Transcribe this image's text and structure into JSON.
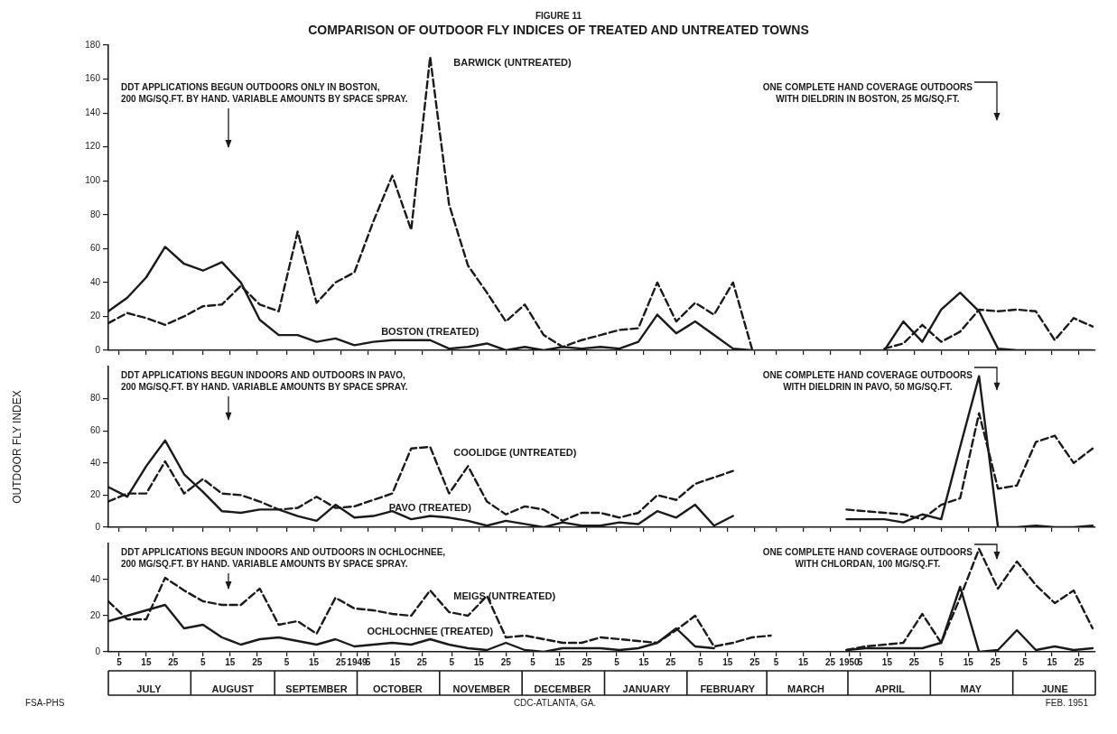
{
  "chart_data": [
    {
      "type": "line",
      "subtitle": "FIGURE 11",
      "title": "COMPARISON OF OUTDOOR FLY INDICES OF TREATED AND UNTREATED TOWNS",
      "annotations": [
        "DDT APPLICATIONS BEGUN OUTDOORS ONLY IN BOSTON,\n200 MG/SQ.FT. BY HAND. VARIABLE AMOUNTS BY SPACE SPRAY.",
        "ONE COMPLETE HAND COVERAGE OUTDOORS\nWITH DIELDRIN IN BOSTON, 25 MG/SQ.FT."
      ],
      "x": [
        "1949-07-01",
        "1949-07-08",
        "1949-07-15",
        "1949-07-22",
        "1949-07-29",
        "1949-08-05",
        "1949-08-12",
        "1949-08-19",
        "1949-08-26",
        "1949-09-02",
        "1949-09-09",
        "1949-09-16",
        "1949-09-23",
        "1949-09-30",
        "1949-10-07",
        "1949-10-14",
        "1949-10-21",
        "1949-10-28",
        "1949-11-04",
        "1949-11-11",
        "1949-11-18",
        "1949-11-25",
        "1949-12-02",
        "1949-12-09",
        "1949-12-16",
        "1949-12-23",
        "1949-12-30",
        "1950-01-06",
        "1950-01-13",
        "1950-01-20",
        "1950-01-27",
        "1950-02-03",
        "1950-02-10",
        "1950-02-17",
        "1950-02-24",
        "1950-03-03",
        "1950-03-10",
        "1950-03-17",
        "1950-03-24",
        "1950-03-31",
        "1950-04-07",
        "1950-04-14",
        "1950-04-21",
        "1950-04-28",
        "1950-05-05",
        "1950-05-12",
        "1950-05-19",
        "1950-05-26",
        "1950-06-02",
        "1950-06-09",
        "1950-06-16",
        "1950-06-23",
        "1950-06-30"
      ],
      "series": [
        {
          "name": "BOSTON (TREATED)",
          "color": "#1a1a1a",
          "line_style": "solid",
          "values": [
            23,
            31,
            43,
            61,
            51,
            47,
            52,
            40,
            18,
            9,
            9,
            5,
            7,
            3,
            5,
            6,
            6,
            6,
            1,
            2,
            4,
            0,
            2,
            0,
            2,
            1,
            2,
            1,
            5,
            21,
            10,
            17,
            9,
            1,
            0,
            null,
            null,
            null,
            null,
            null,
            null,
            0,
            17,
            5,
            24,
            34,
            23,
            1,
            0,
            0,
            0,
            0,
            0
          ]
        },
        {
          "name": "BARWICK (UNTREATED)",
          "color": "#1a1a1a",
          "line_style": "dashed",
          "values": [
            16,
            22,
            19,
            15,
            20,
            26,
            27,
            38,
            27,
            23,
            70,
            28,
            40,
            46,
            76,
            103,
            71,
            173,
            86,
            50,
            34,
            17,
            27,
            9,
            2,
            6,
            9,
            12,
            13,
            40,
            17,
            28,
            21,
            40,
            1,
            null,
            null,
            null,
            null,
            null,
            null,
            1,
            4,
            15,
            5,
            11,
            24,
            23,
            24,
            23,
            6,
            19,
            14
          ]
        }
      ],
      "xlim": [
        "1949-07-01",
        "1950-07-01"
      ],
      "xticks": [
        {
          "value": "1949-07-05",
          "label": null
        },
        {
          "value": "1949-07-15",
          "label": null
        },
        {
          "value": "1949-07-25",
          "label": null
        },
        {
          "value": "1949-08-05",
          "label": null
        },
        {
          "value": "1949-08-15",
          "label": null
        },
        {
          "value": "1949-08-25",
          "label": null
        },
        {
          "value": "1949-09-05",
          "label": null
        },
        {
          "value": "1949-09-15",
          "label": null
        },
        {
          "value": "1949-09-25",
          "label": null
        },
        {
          "value": "1949-10-05",
          "label": null
        },
        {
          "value": "1949-10-15",
          "label": null
        },
        {
          "value": "1949-10-25",
          "label": null
        },
        {
          "value": "1949-11-05",
          "label": null
        },
        {
          "value": "1949-11-15",
          "label": null
        },
        {
          "value": "1949-11-25",
          "label": null
        },
        {
          "value": "1949-12-05",
          "label": null
        },
        {
          "value": "1949-12-15",
          "label": null
        },
        {
          "value": "1949-12-25",
          "label": null
        },
        {
          "value": "1950-01-05",
          "label": null
        },
        {
          "value": "1950-01-15",
          "label": null
        },
        {
          "value": "1950-01-25",
          "label": null
        },
        {
          "value": "1950-02-05",
          "label": null
        },
        {
          "value": "1950-02-15",
          "label": null
        },
        {
          "value": "1950-02-25",
          "label": null
        },
        {
          "value": "1950-03-05",
          "label": null
        },
        {
          "value": "1950-03-15",
          "label": null
        },
        {
          "value": "1950-03-25",
          "label": null
        },
        {
          "value": "1950-04-05",
          "label": null
        },
        {
          "value": "1950-04-15",
          "label": null
        },
        {
          "value": "1950-04-25",
          "label": null
        },
        {
          "value": "1950-05-05",
          "label": null
        },
        {
          "value": "1950-05-15",
          "label": null
        },
        {
          "value": "1950-05-25",
          "label": null
        },
        {
          "value": "1950-06-05",
          "label": null
        },
        {
          "value": "1950-06-15",
          "label": null
        },
        {
          "value": "1950-06-25",
          "label": null
        }
      ],
      "ylim": [
        0,
        180
      ],
      "yticks": [
        0,
        20,
        40,
        60,
        80,
        100,
        120,
        140,
        160,
        180
      ],
      "tick_labels": "y",
      "marker": "none",
      "legend": false
    },
    {
      "type": "line",
      "ylabel": "OUTDOOR FLY INDEX",
      "annotations": [
        "DDT APPLICATIONS BEGUN INDOORS AND OUTDOORS IN PAVO,\n200 MG/SQ.FT. BY HAND. VARIABLE AMOUNTS BY SPACE SPRAY.",
        "ONE COMPLETE HAND COVERAGE OUTDOORS\nWITH DIELDRIN IN PAVO, 50 MG/SQ.FT."
      ],
      "x": [
        "1949-07-01",
        "1949-07-08",
        "1949-07-15",
        "1949-07-22",
        "1949-07-29",
        "1949-08-05",
        "1949-08-12",
        "1949-08-19",
        "1949-08-26",
        "1949-09-02",
        "1949-09-09",
        "1949-09-16",
        "1949-09-23",
        "1949-09-30",
        "1949-10-07",
        "1949-10-14",
        "1949-10-21",
        "1949-10-28",
        "1949-11-04",
        "1949-11-11",
        "1949-11-18",
        "1949-11-25",
        "1949-12-02",
        "1949-12-09",
        "1949-12-16",
        "1949-12-23",
        "1949-12-30",
        "1950-01-06",
        "1950-01-13",
        "1950-01-20",
        "1950-01-27",
        "1950-02-03",
        "1950-02-10",
        "1950-02-17",
        "1950-02-24",
        "1950-03-03",
        "1950-03-10",
        "1950-03-17",
        "1950-03-24",
        "1950-03-31",
        "1950-04-07",
        "1950-04-14",
        "1950-04-21",
        "1950-04-28",
        "1950-05-05",
        "1950-05-12",
        "1950-05-19",
        "1950-05-26",
        "1950-06-02",
        "1950-06-09",
        "1950-06-16",
        "1950-06-23",
        "1950-06-30"
      ],
      "series": [
        {
          "name": "PAVO (TREATED)",
          "color": "#1a1a1a",
          "line_style": "solid",
          "values": [
            25,
            19,
            38,
            54,
            33,
            22,
            10,
            9,
            11,
            11,
            7,
            4,
            14,
            6,
            7,
            10,
            5,
            7,
            6,
            4,
            1,
            4,
            2,
            0,
            3,
            1,
            1,
            3,
            2,
            10,
            6,
            14,
            1,
            7,
            null,
            null,
            null,
            null,
            null,
            5,
            5,
            5,
            3,
            8,
            5,
            50,
            94,
            0,
            0,
            1,
            0,
            0,
            1
          ]
        },
        {
          "name": "COOLIDGE (UNTREATED)",
          "color": "#1a1a1a",
          "line_style": "dashed",
          "values": [
            16,
            21,
            21,
            41,
            21,
            30,
            21,
            20,
            16,
            11,
            12,
            19,
            12,
            13,
            17,
            21,
            49,
            50,
            21,
            38,
            16,
            8,
            13,
            11,
            4,
            9,
            9,
            6,
            9,
            20,
            17,
            27,
            31,
            35,
            null,
            null,
            null,
            null,
            null,
            11,
            10,
            9,
            8,
            5,
            14,
            18,
            71,
            24,
            26,
            53,
            57,
            40,
            49
          ]
        }
      ],
      "xlim": [
        "1949-07-01",
        "1950-07-01"
      ],
      "xticks": [
        {
          "value": "1949-07-05",
          "label": null
        },
        {
          "value": "1949-07-15",
          "label": null
        },
        {
          "value": "1949-07-25",
          "label": null
        },
        {
          "value": "1949-08-05",
          "label": null
        },
        {
          "value": "1949-08-15",
          "label": null
        },
        {
          "value": "1949-08-25",
          "label": null
        },
        {
          "value": "1949-09-05",
          "label": null
        },
        {
          "value": "1949-09-15",
          "label": null
        },
        {
          "value": "1949-09-25",
          "label": null
        },
        {
          "value": "1949-10-05",
          "label": null
        },
        {
          "value": "1949-10-15",
          "label": null
        },
        {
          "value": "1949-10-25",
          "label": null
        },
        {
          "value": "1949-11-05",
          "label": null
        },
        {
          "value": "1949-11-15",
          "label": null
        },
        {
          "value": "1949-11-25",
          "label": null
        },
        {
          "value": "1949-12-05",
          "label": null
        },
        {
          "value": "1949-12-15",
          "label": null
        },
        {
          "value": "1949-12-25",
          "label": null
        },
        {
          "value": "1950-01-05",
          "label": null
        },
        {
          "value": "1950-01-15",
          "label": null
        },
        {
          "value": "1950-01-25",
          "label": null
        },
        {
          "value": "1950-02-05",
          "label": null
        },
        {
          "value": "1950-02-15",
          "label": null
        },
        {
          "value": "1950-02-25",
          "label": null
        },
        {
          "value": "1950-03-05",
          "label": null
        },
        {
          "value": "1950-03-15",
          "label": null
        },
        {
          "value": "1950-03-25",
          "label": null
        },
        {
          "value": "1950-04-05",
          "label": null
        },
        {
          "value": "1950-04-15",
          "label": null
        },
        {
          "value": "1950-04-25",
          "label": null
        },
        {
          "value": "1950-05-05",
          "label": null
        },
        {
          "value": "1950-05-15",
          "label": null
        },
        {
          "value": "1950-05-25",
          "label": null
        },
        {
          "value": "1950-06-05",
          "label": null
        },
        {
          "value": "1950-06-15",
          "label": null
        },
        {
          "value": "1950-06-25",
          "label": null
        }
      ],
      "ylim": [
        0,
        100
      ],
      "yticks": [
        0,
        20,
        40,
        60,
        80
      ],
      "tick_labels": "y",
      "marker": "none",
      "legend": false
    },
    {
      "type": "line",
      "annotations": [
        "DDT APPLICATIONS BEGUN INDOORS AND OUTDOORS IN OCHLOCHNEE,\n200 MG/SQ.FT. BY HAND. VARIABLE AMOUNTS BY SPACE SPRAY.",
        "ONE COMPLETE HAND COVERAGE OUTDOORS\nWITH CHLORDAN, 100 MG/SQ.FT.",
        "FSA-PHS",
        "CDC-ATLANTA, GA.",
        "FEB. 1951"
      ],
      "x": [
        "1949-07-01",
        "1949-07-08",
        "1949-07-15",
        "1949-07-22",
        "1949-07-29",
        "1949-08-05",
        "1949-08-12",
        "1949-08-19",
        "1949-08-26",
        "1949-09-02",
        "1949-09-09",
        "1949-09-16",
        "1949-09-23",
        "1949-09-30",
        "1949-10-07",
        "1949-10-14",
        "1949-10-21",
        "1949-10-28",
        "1949-11-04",
        "1949-11-11",
        "1949-11-18",
        "1949-11-25",
        "1949-12-02",
        "1949-12-09",
        "1949-12-16",
        "1949-12-23",
        "1949-12-30",
        "1950-01-06",
        "1950-01-13",
        "1950-01-20",
        "1950-01-27",
        "1950-02-03",
        "1950-02-10",
        "1950-02-17",
        "1950-02-24",
        "1950-03-03",
        "1950-03-10",
        "1950-03-17",
        "1950-03-24",
        "1950-03-31",
        "1950-04-07",
        "1950-04-14",
        "1950-04-21",
        "1950-04-28",
        "1950-05-05",
        "1950-05-12",
        "1950-05-19",
        "1950-05-26",
        "1950-06-02",
        "1950-06-09",
        "1950-06-16",
        "1950-06-23",
        "1950-06-30"
      ],
      "series": [
        {
          "name": "OCHLOCHNEE (TREATED)",
          "color": "#1a1a1a",
          "line_style": "solid",
          "values": [
            17,
            20,
            23,
            26,
            13,
            15,
            8,
            4,
            7,
            8,
            6,
            4,
            7,
            3,
            4,
            5,
            4,
            7,
            4,
            2,
            1,
            5,
            1,
            0,
            2,
            2,
            2,
            1,
            2,
            5,
            13,
            3,
            2,
            null,
            null,
            null,
            null,
            null,
            null,
            1,
            2,
            2,
            2,
            2,
            5,
            36,
            0,
            1,
            12,
            1,
            3,
            1,
            2
          ]
        },
        {
          "name": "MEIGS (UNTREATED)",
          "color": "#1a1a1a",
          "line_style": "dashed",
          "values": [
            28,
            18,
            18,
            41,
            34,
            28,
            26,
            26,
            35,
            15,
            17,
            10,
            30,
            24,
            23,
            21,
            20,
            34,
            22,
            20,
            31,
            8,
            9,
            7,
            5,
            5,
            8,
            7,
            6,
            5,
            12,
            20,
            3,
            5,
            8,
            9,
            null,
            null,
            null,
            1,
            3,
            4,
            5,
            21,
            5,
            30,
            57,
            35,
            50,
            37,
            27,
            34,
            13
          ]
        }
      ],
      "xlim": [
        "1949-07-01",
        "1950-07-01"
      ],
      "xticks": [
        {
          "value": "1949-07-05",
          "label": "5"
        },
        {
          "value": "1949-07-15",
          "label": "15"
        },
        {
          "value": "1949-07-25",
          "label": "25"
        },
        {
          "value": "1949-08-05",
          "label": "5"
        },
        {
          "value": "1949-08-15",
          "label": "15"
        },
        {
          "value": "1949-08-25",
          "label": "25"
        },
        {
          "value": "1949-09-05",
          "label": "5"
        },
        {
          "value": "1949-09-15",
          "label": "15"
        },
        {
          "value": "1949-09-25",
          "label": "25"
        },
        {
          "value": "1949-10-01",
          "label": "1949"
        },
        {
          "value": "1949-10-05",
          "label": "5"
        },
        {
          "value": "1949-10-15",
          "label": "15"
        },
        {
          "value": "1949-10-25",
          "label": "25"
        },
        {
          "value": "1949-11-05",
          "label": "5"
        },
        {
          "value": "1949-11-15",
          "label": "15"
        },
        {
          "value": "1949-11-25",
          "label": "25"
        },
        {
          "value": "1949-12-05",
          "label": "5"
        },
        {
          "value": "1949-12-15",
          "label": "15"
        },
        {
          "value": "1949-12-25",
          "label": "25"
        },
        {
          "value": "1950-01-05",
          "label": "5"
        },
        {
          "value": "1950-01-15",
          "label": "15"
        },
        {
          "value": "1950-01-25",
          "label": "25"
        },
        {
          "value": "1950-02-05",
          "label": "5"
        },
        {
          "value": "1950-02-15",
          "label": "15"
        },
        {
          "value": "1950-02-25",
          "label": "25"
        },
        {
          "value": "1950-03-05",
          "label": "5"
        },
        {
          "value": "1950-03-15",
          "label": "15"
        },
        {
          "value": "1950-03-25",
          "label": "25"
        },
        {
          "value": "1950-04-01",
          "label": "1950"
        },
        {
          "value": "1950-04-05",
          "label": "5"
        },
        {
          "value": "1950-04-15",
          "label": "15"
        },
        {
          "value": "1950-04-25",
          "label": "25"
        },
        {
          "value": "1950-05-05",
          "label": "5"
        },
        {
          "value": "1950-05-15",
          "label": "15"
        },
        {
          "value": "1950-05-25",
          "label": "25"
        },
        {
          "value": "1950-06-05",
          "label": "5"
        },
        {
          "value": "1950-06-15",
          "label": "15"
        },
        {
          "value": "1950-06-25",
          "label": "25"
        }
      ],
      "x2lim": [
        "1949-07-01",
        "1950-07-01"
      ],
      "x2ticks": [
        {
          "value": "1949-07-16",
          "label": "JULY"
        },
        {
          "value": "1949-08-16",
          "label": "AUGUST"
        },
        {
          "value": "1949-09-16",
          "label": "SEPTEMBER"
        },
        {
          "value": "1949-10-16",
          "label": "OCTOBER"
        },
        {
          "value": "1949-11-16",
          "label": "NOVEMBER"
        },
        {
          "value": "1949-12-16",
          "label": "DECEMBER"
        },
        {
          "value": "1950-01-16",
          "label": "JANUARY"
        },
        {
          "value": "1950-02-15",
          "label": "FEBRUARY"
        },
        {
          "value": "1950-03-16",
          "label": "MARCH"
        },
        {
          "value": "1950-04-16",
          "label": "APRIL"
        },
        {
          "value": "1950-05-16",
          "label": "MAY"
        },
        {
          "value": "1950-06-16",
          "label": "JUNE"
        }
      ],
      "ylim": [
        0,
        60
      ],
      "yticks": [
        0,
        20,
        40
      ],
      "marker": "none",
      "legend": false
    }
  ]
}
